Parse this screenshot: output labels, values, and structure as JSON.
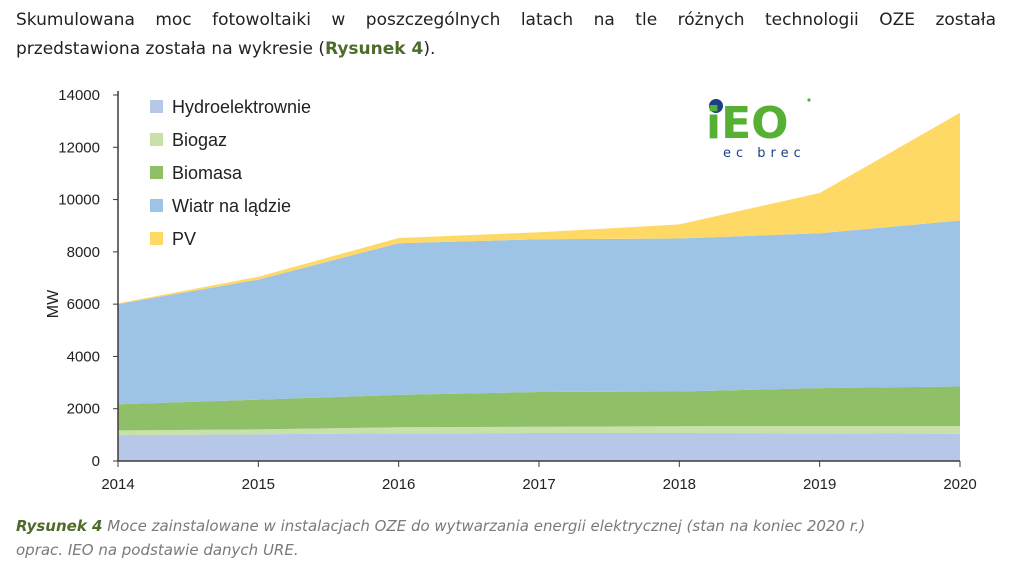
{
  "intro": {
    "line1": "Skumulowana moc fotowoltaiki w poszczególnych latach na tle różnych technologii OZE została",
    "line2_before": "przedstawiona została na wykresie (",
    "line2_ref": "Rysunek 4",
    "line2_after": ")."
  },
  "caption": {
    "ref": "Rysunek 4",
    "line1": " Moce zainstalowane w instalacjach OZE do wytwarzania energii elektrycznej (stan na koniec 2020 r.)",
    "line2": "oprac. IEO na podstawie danych URE."
  },
  "logo": {
    "text": "iEO",
    "subtitle": "ec brec",
    "colors": {
      "green": "#56b033",
      "blue": "#1d3f87"
    }
  },
  "chart_data": {
    "type": "area",
    "stacked": true,
    "title": "",
    "xlabel": "",
    "ylabel": "MW",
    "x": [
      2014,
      2015,
      2016,
      2017,
      2018,
      2019,
      2020
    ],
    "ylim": [
      0,
      14000
    ],
    "yticks": [
      0,
      2000,
      4000,
      6000,
      8000,
      10000,
      12000,
      14000
    ],
    "grid": false,
    "legend_position": "top-left",
    "series": [
      {
        "name": "Hydroelektrownie",
        "color": "#b7c7e8",
        "values": [
          990,
          1020,
          1060,
          1070,
          1070,
          1060,
          1040
        ]
      },
      {
        "name": "Biogaz",
        "color": "#c8e0a9",
        "values": [
          180,
          190,
          230,
          240,
          260,
          280,
          300
        ]
      },
      {
        "name": "Biomasa",
        "color": "#8fc067",
        "values": [
          1000,
          1140,
          1240,
          1330,
          1330,
          1450,
          1510
        ]
      },
      {
        "name": "Wiatr na lądzie",
        "color": "#9dc3e6",
        "values": [
          3830,
          4590,
          5800,
          5840,
          5850,
          5920,
          6350
        ]
      },
      {
        "name": "PV",
        "color": "#ffd966",
        "values": [
          30,
          110,
          200,
          270,
          540,
          1540,
          4120
        ]
      }
    ]
  }
}
